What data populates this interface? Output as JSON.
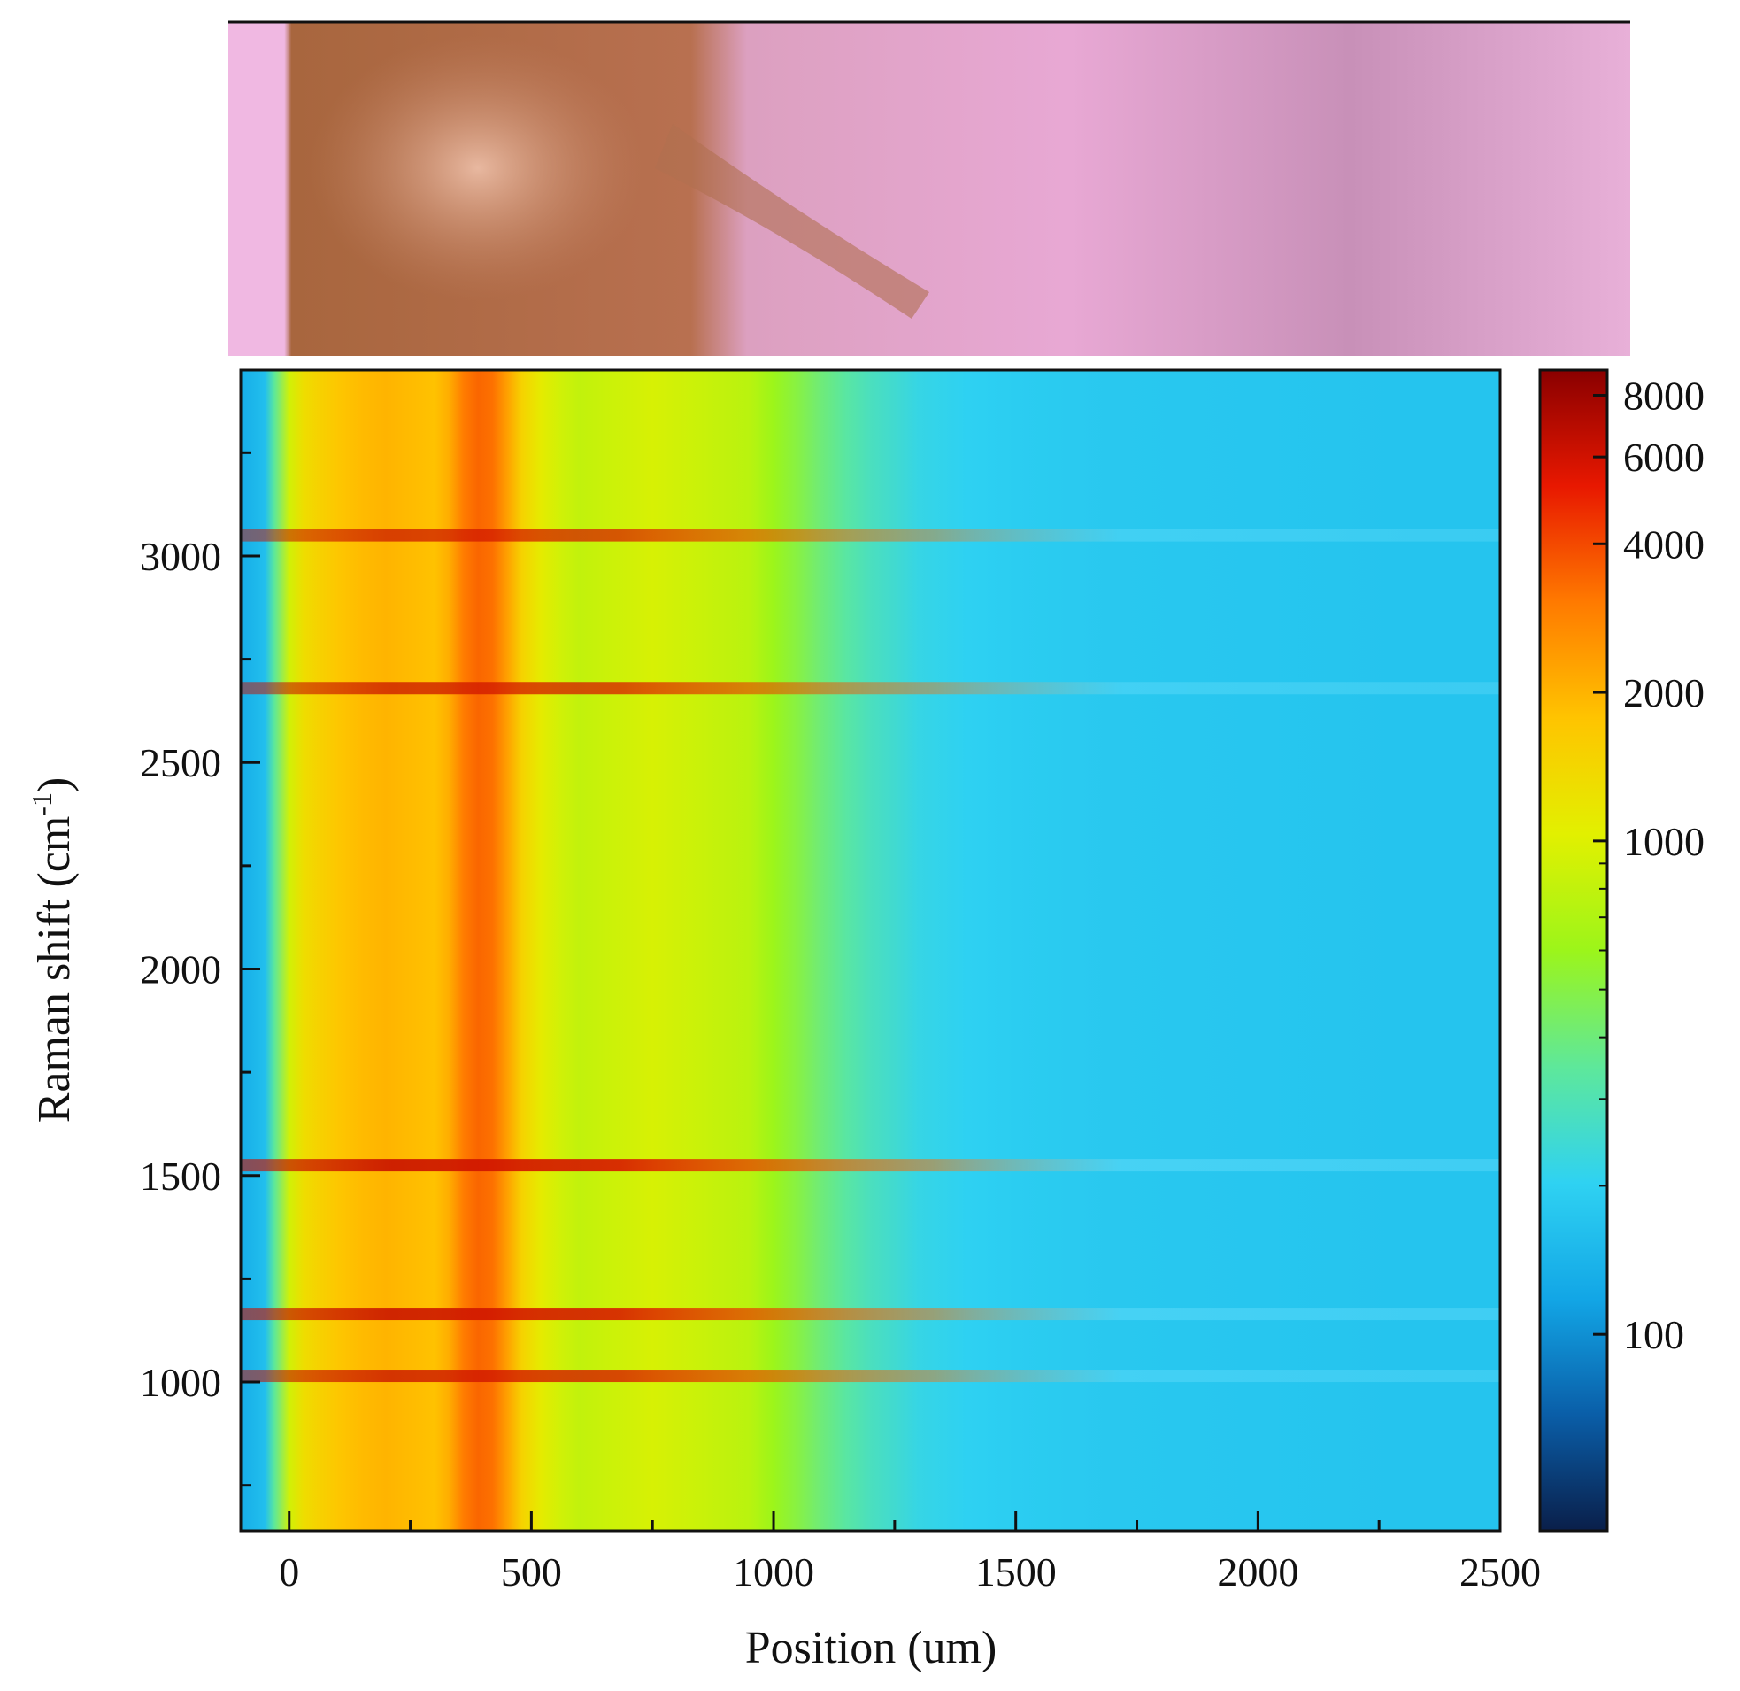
{
  "chart_data": {
    "type": "heatmap",
    "title": "",
    "xlabel": "Position (um)",
    "ylabel": "Raman shift (cm",
    "ylabel_superscript": "-1",
    "ylabel_suffix": ")",
    "xlim": [
      -100,
      2500
    ],
    "ylim": [
      640,
      3450
    ],
    "x_ticks": [
      0,
      500,
      1000,
      1500,
      2000,
      2500
    ],
    "x_tick_labels": [
      "0",
      "500",
      "1000",
      "1500",
      "2000",
      "2500"
    ],
    "y_ticks": [
      1000,
      1500,
      2000,
      2500,
      3000
    ],
    "y_tick_labels": [
      "1000",
      "1500",
      "2000",
      "2500",
      "3000"
    ],
    "colorbar": {
      "scale": "log",
      "range": [
        40,
        9000
      ],
      "ticks": [
        100,
        1000,
        2000,
        4000,
        6000,
        8000
      ],
      "tick_labels": [
        "100",
        "1000",
        "2000",
        "4000",
        "6000",
        "8000"
      ],
      "colors": [
        "#0a1f4a",
        "#0a5ea8",
        "#12a6e6",
        "#2fd2f2",
        "#5ee89a",
        "#9cf51a",
        "#e2f000",
        "#ffc400",
        "#ff7a00",
        "#e81800",
        "#8a0000"
      ]
    },
    "intensity_profile_by_position": {
      "x": [
        -100,
        -80,
        -50,
        -30,
        0,
        30,
        60,
        100,
        150,
        200,
        250,
        300,
        330,
        360,
        390,
        420,
        450,
        480,
        520,
        560,
        600,
        650,
        700,
        750,
        800,
        850,
        900,
        950,
        1000,
        1050,
        1100,
        1150,
        1200,
        1250,
        1300,
        1400,
        1500,
        1700,
        2000,
        2300,
        2500
      ],
      "intensity": [
        130,
        140,
        160,
        350,
        900,
        1300,
        1500,
        1700,
        1900,
        2000,
        1900,
        1800,
        2100,
        3000,
        3400,
        3200,
        2300,
        1500,
        1100,
        900,
        800,
        850,
        900,
        950,
        900,
        850,
        800,
        750,
        600,
        500,
        400,
        330,
        280,
        250,
        220,
        200,
        190,
        180,
        175,
        170,
        170
      ]
    },
    "peak_bands": [
      {
        "raman_shift": 1015,
        "max_intensity": 3500
      },
      {
        "raman_shift": 1165,
        "max_intensity": 6000
      },
      {
        "raman_shift": 1525,
        "max_intensity": 7000
      },
      {
        "raman_shift": 2680,
        "max_intensity": 2800
      },
      {
        "raman_shift": 3050,
        "max_intensity": 2400
      }
    ]
  },
  "photo": {
    "description_colors": {
      "tissue_left": "#a8663e",
      "tissue_right": "#e6a8d2",
      "edge": "#f0b8e2"
    }
  }
}
